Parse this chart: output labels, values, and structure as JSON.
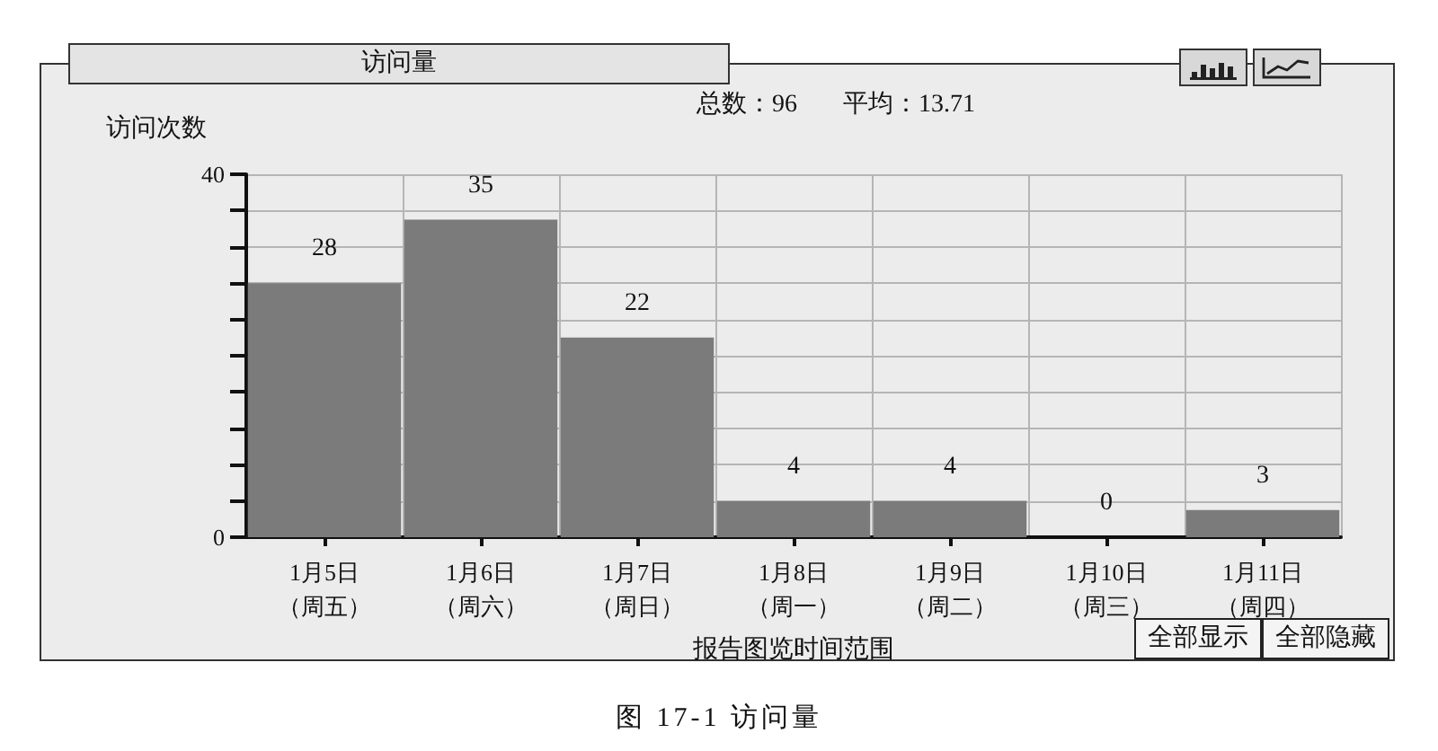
{
  "chart_data": {
    "type": "bar",
    "title": "访问量",
    "subtitle": "总数：96 平均：13.71",
    "ylabel": "访问次数",
    "xlabel": "报告图览时间范围",
    "categories": [
      "1月5日（周五）",
      "1月6日（周六）",
      "1月7日（周日）",
      "1月8日（周一）",
      "1月9日（周二）",
      "1月10日（周三）",
      "1月11日（周四）"
    ],
    "values": [
      28,
      35,
      22,
      4,
      4,
      0,
      3
    ],
    "color": "#7b7b7b",
    "ylim": [
      0,
      40
    ],
    "yticks": [
      0,
      {
        "value": 4,
        "label": null
      },
      {
        "value": 8,
        "label": null
      },
      {
        "value": 12,
        "label": null
      },
      {
        "value": 16,
        "label": null
      },
      {
        "value": 20,
        "label": null
      },
      {
        "value": 24,
        "label": null
      },
      {
        "value": 28,
        "label": null
      },
      {
        "value": 32,
        "label": null
      },
      {
        "value": 36,
        "label": null
      },
      40
    ],
    "grid": true,
    "data_labels": true,
    "annotations": [
      "全部显示",
      "全部隐藏",
      "图 17-1 访问量"
    ]
  }
}
